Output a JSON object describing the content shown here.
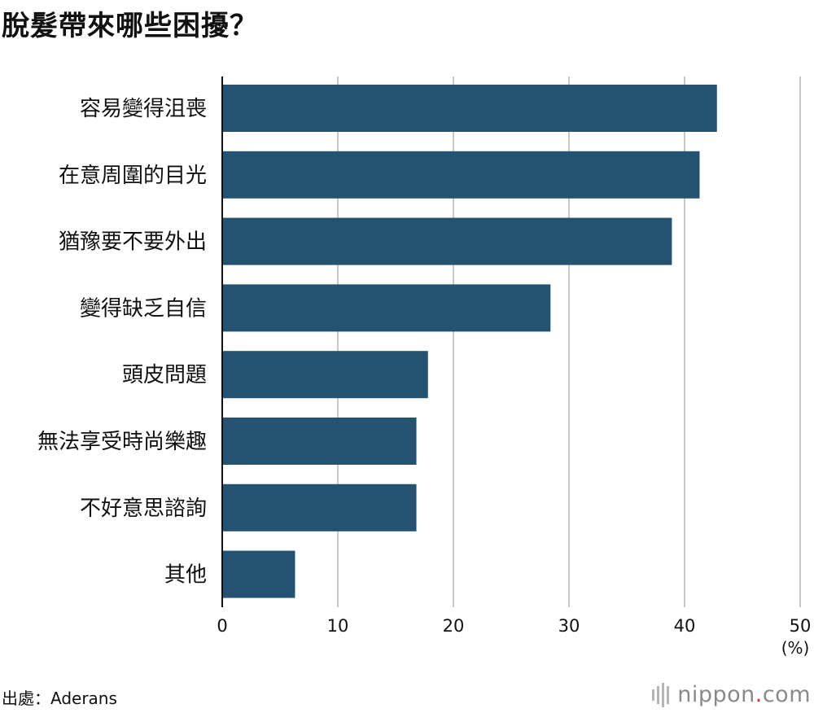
{
  "title": "脫髮帶來哪些困擾？",
  "source": "出處：Aderans",
  "brand": {
    "name": "nippon",
    "dot": ".",
    "tld": "com",
    "icon": "nippon-logo-bars-icon"
  },
  "colors": {
    "bar": "#235370",
    "grid": "#c8c8c8",
    "axis": "#111111",
    "brand_dot": "#d6342c"
  },
  "chart_data": {
    "type": "bar",
    "orientation": "horizontal",
    "categories": [
      "容易變得沮喪",
      "在意周圍的目光",
      "猶豫要不要外出",
      "變得缺乏自信",
      "頭皮問題",
      "無法享受時尚樂趣",
      "不好意思諮詢",
      "其他"
    ],
    "values": [
      42.8,
      41.3,
      38.9,
      28.4,
      17.8,
      16.8,
      16.8,
      6.3
    ],
    "xlim": [
      0,
      50
    ],
    "xticks": [
      0,
      10,
      20,
      30,
      40,
      50
    ],
    "xunit": "(%)",
    "grid": true
  }
}
